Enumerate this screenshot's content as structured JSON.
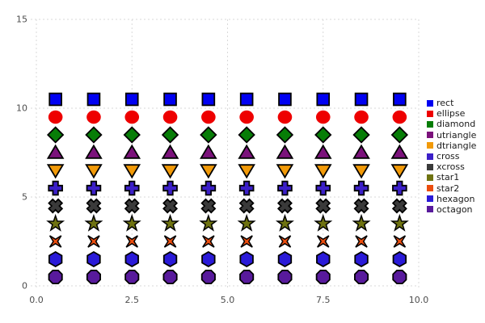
{
  "chart_data": {
    "type": "scatter",
    "title": "",
    "xlabel": "",
    "ylabel": "",
    "xlim": [
      0,
      10
    ],
    "ylim": [
      0,
      15
    ],
    "grid": true,
    "legend_position": "right",
    "x": [
      0.5,
      1.5,
      2.5,
      3.5,
      4.5,
      5.5,
      6.5,
      7.5,
      8.5,
      9.5
    ],
    "x_ticks": [
      {
        "value": 0,
        "label": "0.0"
      },
      {
        "value": 2.5,
        "label": "2.5"
      },
      {
        "value": 5,
        "label": "5.0"
      },
      {
        "value": 7.5,
        "label": "7.5"
      },
      {
        "value": 10,
        "label": "10.0"
      }
    ],
    "y_ticks": [
      {
        "value": 0,
        "label": "0"
      },
      {
        "value": 5,
        "label": "5"
      },
      {
        "value": 10,
        "label": "10"
      },
      {
        "value": 15,
        "label": "15"
      }
    ],
    "series": [
      {
        "name": "rect",
        "marker": "rect",
        "color": "#0000F2",
        "y": 10.5
      },
      {
        "name": "ellipse",
        "marker": "ellipse",
        "color": "#EE0000",
        "y": 9.5
      },
      {
        "name": "diamond",
        "marker": "diamond",
        "color": "#077D07",
        "y": 8.5
      },
      {
        "name": "utriangle",
        "marker": "utriangle",
        "color": "#7B127B",
        "y": 7.5
      },
      {
        "name": "dtriangle",
        "marker": "dtriangle",
        "color": "#F29A08",
        "y": 6.5
      },
      {
        "name": "cross",
        "marker": "cross",
        "color": "#3B1FC8",
        "y": 5.5
      },
      {
        "name": "xcross",
        "marker": "xcross",
        "color": "#3A3A3A",
        "y": 4.5
      },
      {
        "name": "star1",
        "marker": "star1",
        "color": "#6F7311",
        "y": 3.5
      },
      {
        "name": "star2",
        "marker": "star2",
        "color": "#EB4D0E",
        "y": 2.5,
        "halo": "#FFFFFF"
      },
      {
        "name": "hexagon",
        "marker": "hexagon",
        "color": "#2A1AD8",
        "y": 1.5
      },
      {
        "name": "octagon",
        "marker": "octagon",
        "color": "#581A9C",
        "y": 0.5
      }
    ]
  },
  "style": {
    "background": "#FFFFFF",
    "grid_color": "#D9D9D9",
    "tick_label_color": "#4D4D4D",
    "legend_text_color": "#1A1A1A",
    "marker_stroke": "#000000"
  }
}
